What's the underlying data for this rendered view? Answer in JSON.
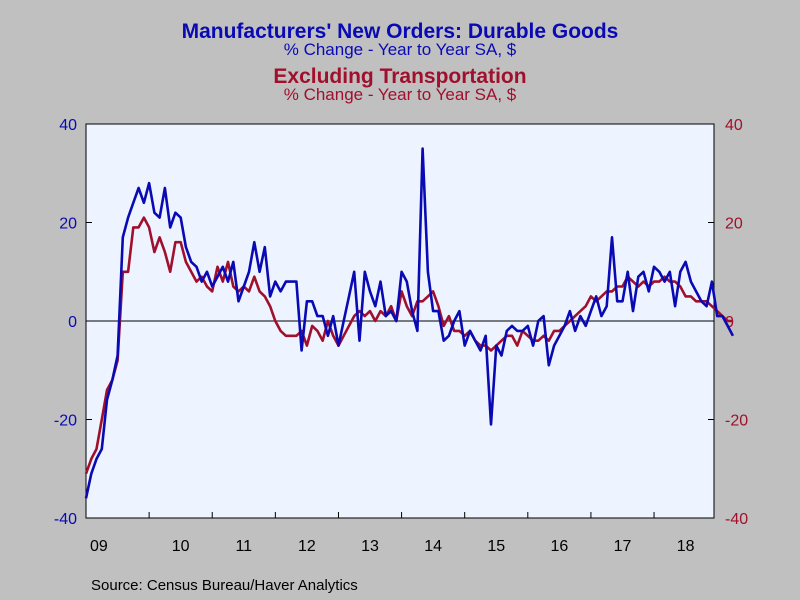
{
  "header": {
    "title_primary": "Manufacturers' New Orders: Durable Goods",
    "subtitle_primary": "% Change - Year to Year    SA, $",
    "title_secondary": "Excluding Transportation",
    "subtitle_secondary": "% Change - Year to Year    SA, $"
  },
  "footer": {
    "source": "Source:  Census Bureau/Haver Analytics"
  },
  "colors": {
    "background": "#c0c0c0",
    "plot_background": "#eef4ff",
    "series_primary": "#0a0ab4",
    "series_secondary": "#a0102c"
  },
  "chart_data": {
    "type": "line",
    "title": "Manufacturers' New Orders: Durable Goods",
    "subtitle": "% Change - Year to Year    SA, $",
    "xlabel": "",
    "ylabel": "",
    "x_tick_labels": [
      "09",
      "10",
      "11",
      "12",
      "13",
      "14",
      "15",
      "16",
      "17",
      "18"
    ],
    "x_range": [
      2009.0,
      2018.95
    ],
    "ylim": [
      -40,
      40
    ],
    "y_ticks": [
      -40,
      -20,
      0,
      20,
      40
    ],
    "y_tick_labels_left": [
      "-40",
      "-20",
      "0",
      "20",
      "40"
    ],
    "y_tick_labels_right": [
      "-40",
      "-20",
      "0",
      "20",
      "40"
    ],
    "zero_line": true,
    "grid": false,
    "legend": "none",
    "series": [
      {
        "name": "Manufacturers' New Orders: Durable Goods",
        "color": "#0a0ab4",
        "axis": "left",
        "start": "2009-01",
        "frequency": "monthly",
        "values": [
          -36,
          -31,
          -28,
          -26,
          -16,
          -12,
          -7,
          17,
          21,
          24,
          27,
          24,
          28,
          22,
          21,
          27,
          19,
          22,
          21,
          15,
          12,
          11,
          8,
          10,
          7,
          9,
          11,
          8,
          12,
          4,
          7,
          10,
          16,
          10,
          15,
          5,
          8,
          6,
          8,
          8,
          8,
          -6,
          4,
          4,
          1,
          1,
          -3,
          1,
          -5,
          0,
          5,
          10,
          -4,
          10,
          6,
          3,
          8,
          1,
          2,
          0,
          10,
          8,
          2,
          -2,
          35,
          10,
          2,
          2,
          -4,
          -3,
          0,
          2,
          -5,
          -2,
          -4,
          -6,
          -3,
          -21,
          -5,
          -7,
          -2,
          -1,
          -2,
          -2,
          -1,
          -5,
          0,
          1,
          -9,
          -5,
          -3,
          -1,
          2,
          -2,
          1,
          -1,
          2,
          5,
          1,
          3,
          17,
          4,
          4,
          10,
          2,
          9,
          10,
          6,
          11,
          10,
          8,
          10,
          3,
          10,
          12,
          8,
          6,
          4,
          3,
          8,
          1,
          1,
          -1,
          -3
        ]
      },
      {
        "name": "Excluding Transportation",
        "color": "#a0102c",
        "axis": "right",
        "start": "2009-01",
        "frequency": "monthly",
        "values": [
          -31,
          -28,
          -26,
          -20,
          -14,
          -12,
          -8,
          10,
          10,
          19,
          19,
          21,
          19,
          14,
          17,
          14,
          10,
          16,
          16,
          12,
          10,
          8,
          9,
          7,
          6,
          11,
          8,
          12,
          7,
          6,
          7,
          6,
          9,
          6,
          5,
          3,
          0,
          -2,
          -3,
          -3,
          -3,
          -2,
          -5,
          -1,
          -2,
          -4,
          0,
          -3,
          -5,
          -3,
          -1,
          1,
          2,
          1,
          2,
          0,
          2,
          1,
          3,
          0,
          6,
          3,
          1,
          4,
          4,
          5,
          6,
          3,
          -1,
          1,
          -2,
          -2,
          -3,
          -2,
          -4,
          -5,
          -5,
          -6,
          -5,
          -4,
          -3,
          -3,
          -5,
          -2,
          -3,
          -4,
          -4,
          -3,
          -4,
          -2,
          -2,
          -1,
          0,
          1,
          2,
          3,
          5,
          4,
          5,
          6,
          6,
          7,
          7,
          9,
          8,
          7,
          8,
          7,
          8,
          8,
          9,
          8,
          8,
          7,
          5,
          5,
          4,
          4,
          4,
          3,
          2,
          1,
          0,
          0
        ]
      }
    ]
  }
}
